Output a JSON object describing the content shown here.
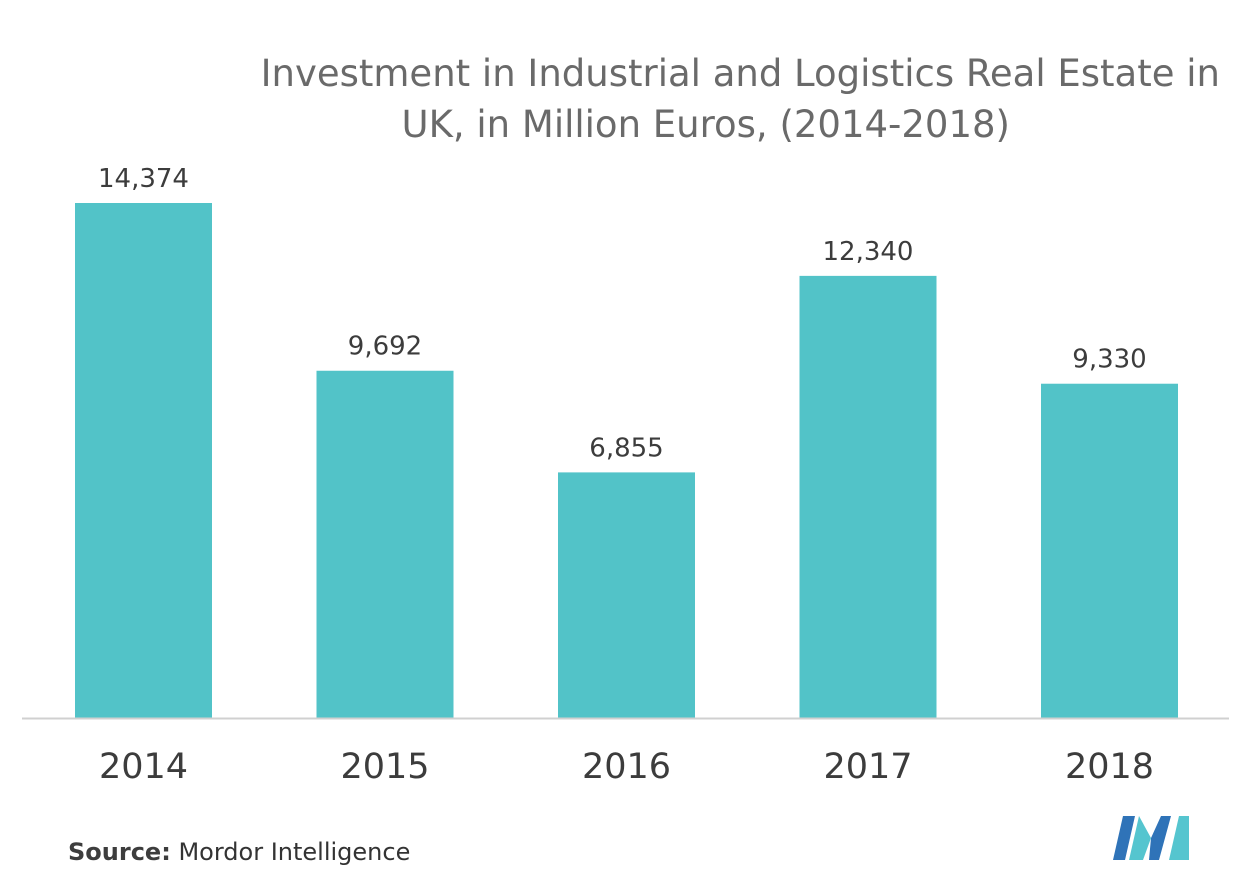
{
  "header": {
    "title_line1": "Investment in Industrial and Logistics Real Estate in",
    "title_line2": "UK, in Million Euros, (2014-2018)"
  },
  "footer": {
    "source_label": "Source:",
    "source_text": "Mordor Intelligence"
  },
  "chart_data": {
    "type": "bar",
    "title": "Investment in Industrial and Logistics Real Estate in UK, in Million Euros, (2014-2018)",
    "categories": [
      "2014",
      "2015",
      "2016",
      "2017",
      "2018"
    ],
    "values": [
      14374,
      9692,
      6855,
      12340,
      9330
    ],
    "value_labels": [
      "14,374",
      "9,692",
      "6,855",
      "12,340",
      "9,330"
    ],
    "xlabel": "",
    "ylabel": "",
    "ylim": [
      0,
      14374
    ],
    "grid": false,
    "legend": "none",
    "colors": {
      "bar": "#52c3c8",
      "axis": "#d0d0d0",
      "label": "#3c3c3c",
      "tick": "#3c3c3c"
    }
  },
  "logo": {
    "name": "mordor-intelligence-logo-icon",
    "colors": [
      "#2f73b8",
      "#55c5cf"
    ]
  }
}
